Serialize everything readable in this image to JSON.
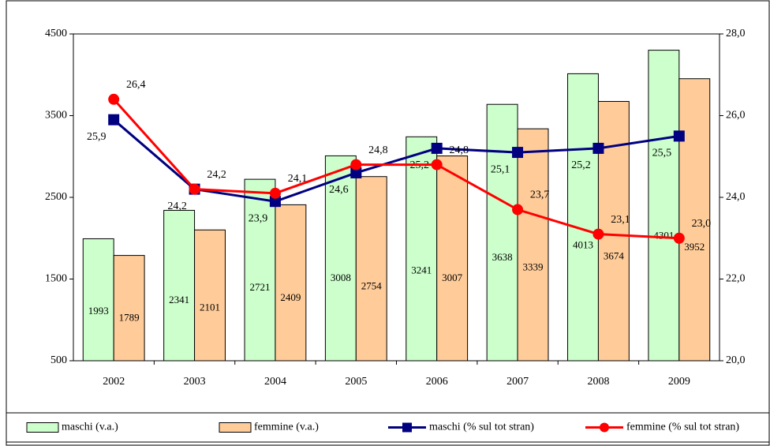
{
  "chart_data": {
    "type": "combo",
    "categories": [
      "2002",
      "2003",
      "2004",
      "2005",
      "2006",
      "2007",
      "2008",
      "2009"
    ],
    "series": [
      {
        "name": "maschi (v.a.)",
        "type": "bar",
        "color": "#ccffcc",
        "values": [
          1993,
          2341,
          2721,
          3008,
          3241,
          3638,
          4013,
          4301
        ]
      },
      {
        "name": "femmine (v.a.)",
        "type": "bar",
        "color": "#ffcc99",
        "values": [
          1789,
          2101,
          2409,
          2754,
          3007,
          3339,
          3674,
          3952
        ]
      },
      {
        "name": "maschi (% sul tot stran)",
        "type": "line",
        "marker": "square",
        "axis": "y2",
        "color": "#000080",
        "values": [
          25.9,
          24.2,
          23.9,
          24.6,
          25.2,
          25.1,
          25.2,
          25.5
        ],
        "value_labels": [
          "25,9",
          "24,2",
          "23,9",
          "24,6",
          "25,2",
          "25,1",
          "25,2",
          "25,5"
        ]
      },
      {
        "name": "femmine (% sul tot stran)",
        "type": "line",
        "marker": "circle",
        "axis": "y2",
        "color": "#ff0000",
        "values": [
          26.4,
          24.2,
          24.1,
          24.8,
          24.8,
          23.7,
          23.1,
          23.0
        ],
        "value_labels": [
          "26,4",
          "24,2",
          "24,1",
          "24,8",
          "24,8",
          "23,7",
          "23,1",
          "23,0"
        ]
      }
    ],
    "ylim": [
      500,
      4500
    ],
    "yticks": [
      500,
      1500,
      2500,
      3500,
      4500
    ],
    "y2lim": [
      20,
      28
    ],
    "y2ticks": [
      {
        "value": 20,
        "label": "20,0"
      },
      {
        "value": 22,
        "label": "22,0"
      },
      {
        "value": 24,
        "label": "24,0"
      },
      {
        "value": 26,
        "label": "26,0"
      },
      {
        "value": 28,
        "label": "28,0"
      }
    ],
    "legend": "bottom"
  }
}
